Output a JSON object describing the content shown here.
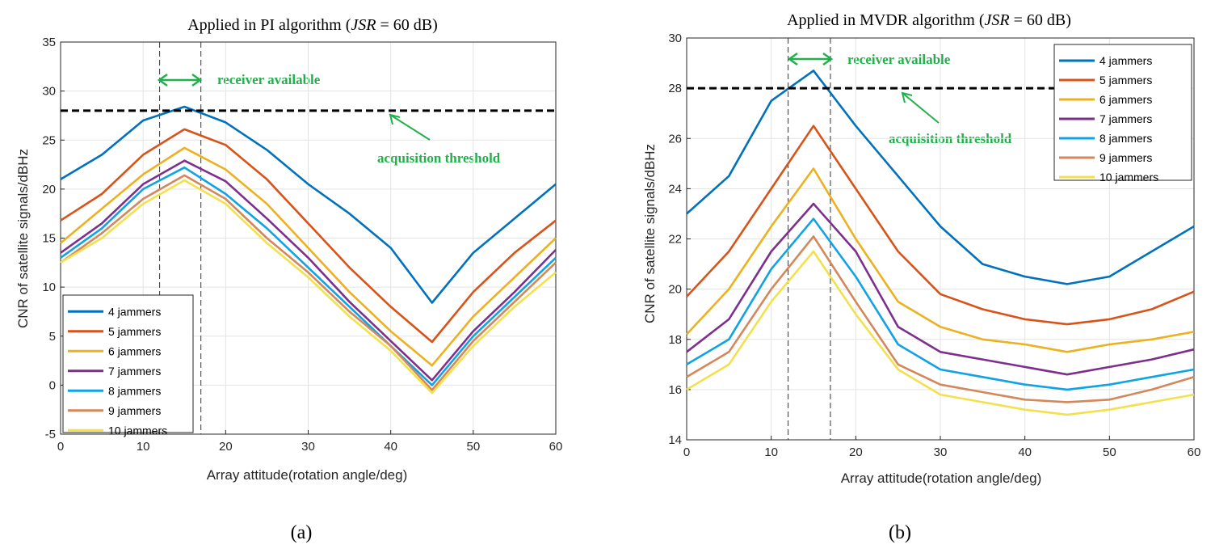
{
  "series_colors": [
    "#0072BD",
    "#D95319",
    "#EDB120",
    "#7E2F8E",
    "#0FA3E6",
    "#D4875A",
    "#F2E14C"
  ],
  "chart_data": [
    {
      "type": "line",
      "panel_label": "(a)",
      "title_prefix": "Applied in PI algorithm (",
      "title_italic": "JSR",
      "title_suffix": " = 60 dB)",
      "xlabel": "Array attitude(rotation angle/deg)",
      "ylabel": "CNR of satellite signals/dBHz",
      "xlim": [
        0,
        60
      ],
      "ylim": [
        -5,
        35
      ],
      "xticks": [
        0,
        10,
        20,
        30,
        40,
        50,
        60
      ],
      "yticks": [
        -5,
        0,
        5,
        10,
        15,
        20,
        25,
        30,
        35
      ],
      "legend_position": "bottom-left",
      "threshold": 28,
      "vlines": [
        12,
        17
      ],
      "annotations": {
        "receiver_available": "receiver available",
        "acquisition_threshold": "acquisition threshold"
      },
      "x": [
        0,
        5,
        10,
        15,
        20,
        25,
        30,
        35,
        40,
        45,
        50,
        55,
        60
      ],
      "series": [
        {
          "name": "4 jammers",
          "values": [
            21,
            23.5,
            27,
            28.4,
            26.8,
            24,
            20.5,
            17.5,
            14,
            8.4,
            13.5,
            17,
            20.5
          ]
        },
        {
          "name": "5 jammers",
          "values": [
            16.8,
            19.5,
            23.5,
            26.1,
            24.5,
            21,
            16.5,
            12,
            8,
            4.4,
            9.5,
            13.5,
            16.8
          ]
        },
        {
          "name": "6 jammers",
          "values": [
            14.5,
            18,
            21.5,
            24.2,
            22,
            18.5,
            14,
            9.5,
            5.5,
            2,
            7,
            11,
            15
          ]
        },
        {
          "name": "7 jammers",
          "values": [
            13.5,
            16.5,
            20.5,
            22.9,
            20.8,
            17,
            13,
            8.5,
            4.5,
            0.5,
            5.5,
            9.5,
            13.8
          ]
        },
        {
          "name": "8 jammers",
          "values": [
            13,
            16,
            20,
            22.2,
            19.5,
            16,
            12,
            8,
            4,
            0,
            5,
            9,
            13
          ]
        },
        {
          "name": "9 jammers",
          "values": [
            12.5,
            15.5,
            19,
            21.4,
            19,
            15,
            11.5,
            7.5,
            4,
            -0.5,
            4.5,
            8.5,
            12.5
          ]
        },
        {
          "name": "10 jammers",
          "values": [
            12.5,
            15,
            18.5,
            20.9,
            18.5,
            14.5,
            11,
            7,
            3.5,
            -0.8,
            4,
            8,
            11.5
          ]
        }
      ]
    },
    {
      "type": "line",
      "panel_label": "(b)",
      "title_prefix": "Applied in MVDR algorithm (",
      "title_italic": "JSR",
      "title_suffix": " = 60 dB)",
      "xlabel": "Array attitude(rotation angle/deg)",
      "ylabel": "CNR of satellite signals/dBHz",
      "xlim": [
        0,
        60
      ],
      "ylim": [
        14,
        30
      ],
      "xticks": [
        0,
        10,
        20,
        30,
        40,
        50,
        60
      ],
      "yticks": [
        14,
        16,
        18,
        20,
        22,
        24,
        26,
        28,
        30
      ],
      "legend_position": "top-right",
      "threshold": 28,
      "vlines": [
        12,
        17
      ],
      "annotations": {
        "receiver_available": "receiver available",
        "acquisition_threshold": "acquisition threshold"
      },
      "x": [
        0,
        5,
        10,
        15,
        20,
        25,
        30,
        35,
        40,
        45,
        50,
        55,
        60
      ],
      "series": [
        {
          "name": "4 jammers",
          "values": [
            23,
            24.5,
            27.5,
            28.7,
            26.5,
            24.5,
            22.5,
            21,
            20.5,
            20.2,
            20.5,
            21.5,
            22.5
          ]
        },
        {
          "name": "5 jammers",
          "values": [
            19.7,
            21.5,
            24,
            26.5,
            24,
            21.5,
            19.8,
            19.2,
            18.8,
            18.6,
            18.8,
            19.2,
            19.9
          ]
        },
        {
          "name": "6 jammers",
          "values": [
            18.2,
            20,
            22.5,
            24.8,
            22,
            19.5,
            18.5,
            18,
            17.8,
            17.5,
            17.8,
            18,
            18.3
          ]
        },
        {
          "name": "7 jammers",
          "values": [
            17.5,
            18.8,
            21.5,
            23.4,
            21.5,
            18.5,
            17.5,
            17.2,
            16.9,
            16.6,
            16.9,
            17.2,
            17.6
          ]
        },
        {
          "name": "8 jammers",
          "values": [
            17,
            18,
            20.8,
            22.8,
            20.5,
            17.8,
            16.8,
            16.5,
            16.2,
            16,
            16.2,
            16.5,
            16.8
          ]
        },
        {
          "name": "9 jammers",
          "values": [
            16.5,
            17.5,
            20,
            22.1,
            19.5,
            17,
            16.2,
            15.9,
            15.6,
            15.5,
            15.6,
            16,
            16.5
          ]
        },
        {
          "name": "10 jammers",
          "values": [
            16,
            17,
            19.5,
            21.5,
            19,
            16.8,
            15.8,
            15.5,
            15.2,
            15,
            15.2,
            15.5,
            15.8
          ]
        }
      ]
    }
  ]
}
